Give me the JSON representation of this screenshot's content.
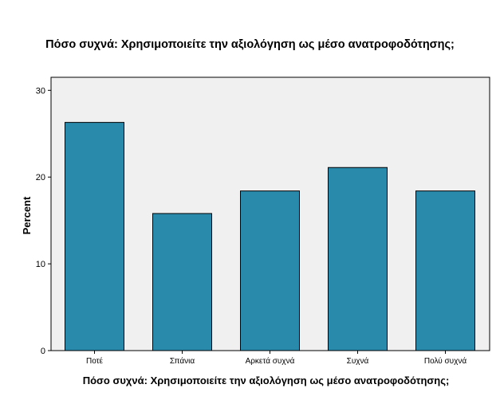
{
  "chart_data": {
    "type": "bar",
    "title": "Πόσο συχνά: Χρησιμοποιείτε την αξιολόγηση ως μέσο ανατροφοδότησης;",
    "xlabel": "Πόσο συχνά: Χρησιμοποιείτε την αξιολόγηση ως μέσο ανατροφοδότησης;",
    "ylabel": "Percent",
    "categories": [
      "Ποτέ",
      "Σπάνια",
      "Αρκετά συχνά",
      "Συχνά",
      "Πολύ συχνά"
    ],
    "values": [
      26.3,
      15.8,
      18.4,
      21.1,
      18.4
    ],
    "ylim": [
      0,
      30
    ],
    "yticks": [
      0,
      10,
      20,
      30
    ],
    "grid": false,
    "colors": {
      "bar": "#2a8aab",
      "bar_outline": "#000000",
      "plot_background": "#f0f0f0"
    }
  }
}
